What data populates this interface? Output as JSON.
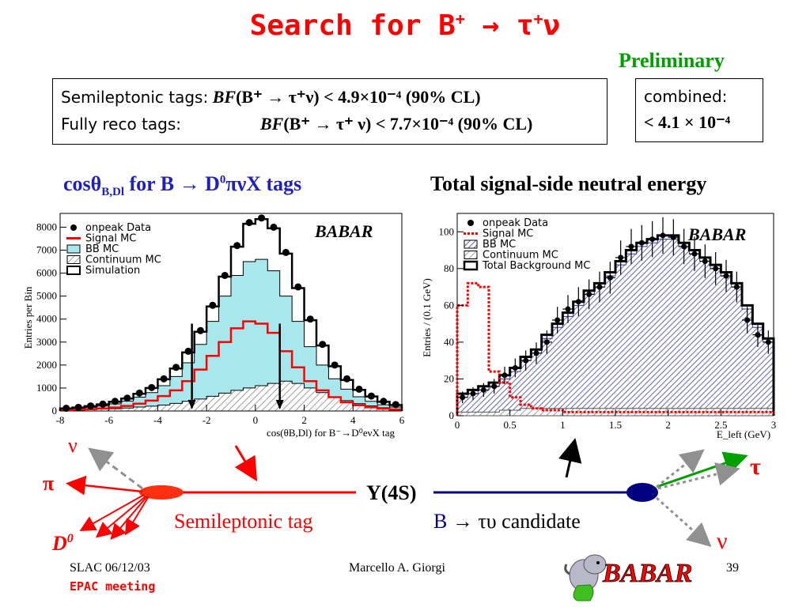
{
  "slide": {
    "title_main": "Search for B",
    "title_sup": "+",
    "title_rest": " → τ",
    "title_sup2": "+",
    "title_end": "ν",
    "preliminary": "Preliminary"
  },
  "results": {
    "semi_label": "Semileptonic tags:",
    "semi_bf": "BF",
    "semi_expr": "(B⁺ → τ⁺ν) < 4.9×10⁻⁴ (90% CL)",
    "full_label": "Fully reco tags:",
    "full_bf": "BF",
    "full_expr": "(B⁺ → τ⁺ ν) < 7.7×10⁻⁴ (90% CL)",
    "combined_label": "combined:",
    "combined_value": "< 4.1 × 10⁻⁴"
  },
  "left_plot": {
    "heading_a": "cosθ",
    "heading_sub": "B,Dl",
    "heading_b": "  for B → D",
    "heading_sup": "0",
    "heading_c": "πνX tags",
    "ylabel": "Entries per Bin",
    "xlabel": "cos(θB,Dl) for B⁻→D⁰eνX tag",
    "logo": "BABAR",
    "legend": [
      "onpeak Data",
      "Signal MC",
      "BB MC",
      "Continuum MC",
      "Simulation"
    ],
    "x_ticks": [
      "-8",
      "-6",
      "-4",
      "-2",
      "0",
      "2",
      "4",
      "6"
    ],
    "y_ticks": [
      "0",
      "1000",
      "2000",
      "3000",
      "4000",
      "5000",
      "6000",
      "7000",
      "8000"
    ]
  },
  "right_plot": {
    "heading": "Total signal-side neutral energy",
    "ylabel": "Entries / (0.1 GeV)",
    "xlabel": "E_left (GeV)",
    "logo": "BABAR",
    "legend": [
      "onpeak Data",
      "Signal MC",
      "BB MC",
      "Continuum MC",
      "Total Background MC"
    ],
    "x_ticks": [
      "0",
      "0.5",
      "1",
      "1.5",
      "2",
      "2.5",
      "3"
    ],
    "y_ticks": [
      "0",
      "20",
      "40",
      "60",
      "80",
      "100"
    ]
  },
  "diagram": {
    "nu_left": "ν",
    "pi": "π",
    "d0": "D",
    "d0_sup": "0",
    "semi_tag": "Semileptonic tag",
    "y4s": "Y(4S)",
    "cand_b": "B",
    "cand_rest": " → τυ  candidate",
    "tau": "τ",
    "nu_right": "ν"
  },
  "footer": {
    "date": "SLAC 06/12/03",
    "meeting": "EPAC meeting",
    "author": "Marcello A. Giorgi",
    "logo": "BABAR",
    "page": "39"
  },
  "colors": {
    "title": "#ff0000",
    "preliminary": "#00a000",
    "heading_blue": "#2020c0",
    "signal": "#ff0000",
    "bb_mc_left": "#a8e8ec",
    "bb_mc_right": "#7c7cc0",
    "tau_line": "#00a000",
    "b_line": "#000080"
  },
  "chart_data": [
    {
      "type": "bar",
      "title": "cosθB,Dl for B → D0πνX tags",
      "xlabel": "cos(θB,Dl) for B⁻→D⁰eνX tag",
      "ylabel": "Entries per Bin",
      "xlim": [
        -8,
        6
      ],
      "ylim": [
        0,
        8600
      ],
      "x": [
        -7.75,
        -7.25,
        -6.75,
        -6.25,
        -5.75,
        -5.25,
        -4.75,
        -4.25,
        -3.75,
        -3.25,
        -2.75,
        -2.25,
        -1.75,
        -1.25,
        -0.75,
        -0.25,
        0.25,
        0.75,
        1.25,
        1.75,
        2.25,
        2.75,
        3.25,
        3.75,
        4.25,
        4.75,
        5.25,
        5.75
      ],
      "series": [
        {
          "name": "onpeak Data",
          "values": [
            120,
            160,
            220,
            300,
            420,
            560,
            780,
            1020,
            1400,
            1900,
            2600,
            3500,
            4600,
            5900,
            7200,
            8200,
            8400,
            8000,
            6900,
            5400,
            4000,
            2900,
            2000,
            1400,
            950,
            650,
            420,
            280
          ]
        },
        {
          "name": "Simulation",
          "values": [
            110,
            150,
            210,
            290,
            400,
            540,
            750,
            1000,
            1380,
            1850,
            2550,
            3450,
            4550,
            5850,
            7150,
            8150,
            8350,
            7950,
            6850,
            5350,
            3950,
            2850,
            1950,
            1350,
            920,
            630,
            400,
            260
          ]
        },
        {
          "name": "BB MC",
          "values": [
            80,
            110,
            160,
            220,
            310,
            430,
            600,
            800,
            1100,
            1500,
            2100,
            2900,
            3900,
            5000,
            5900,
            6500,
            6600,
            6100,
            5000,
            3900,
            2800,
            2000,
            1400,
            950,
            620,
            420,
            270,
            170
          ]
        },
        {
          "name": "Signal MC",
          "values": [
            40,
            60,
            80,
            110,
            150,
            220,
            320,
            450,
            650,
            900,
            1300,
            1800,
            2400,
            3000,
            3600,
            3900,
            3800,
            3400,
            2600,
            1900,
            1300,
            900,
            600,
            380,
            250,
            160,
            100,
            60
          ]
        },
        {
          "name": "Continuum MC",
          "values": [
            40,
            50,
            60,
            80,
            100,
            130,
            170,
            210,
            260,
            330,
            420,
            520,
            640,
            780,
            900,
            1000,
            1100,
            1200,
            1300,
            1200,
            1000,
            800,
            600,
            450,
            320,
            220,
            140,
            90
          ]
        }
      ]
    },
    {
      "type": "bar",
      "title": "Total signal-side neutral energy",
      "xlabel": "E_left (GeV)",
      "ylabel": "Entries / (0.1 GeV)",
      "xlim": [
        0,
        3
      ],
      "ylim": [
        0,
        110
      ],
      "x": [
        0.05,
        0.15,
        0.25,
        0.35,
        0.45,
        0.55,
        0.65,
        0.75,
        0.85,
        0.95,
        1.05,
        1.15,
        1.25,
        1.35,
        1.45,
        1.55,
        1.65,
        1.75,
        1.85,
        1.95,
        2.05,
        2.15,
        2.25,
        2.35,
        2.45,
        2.55,
        2.65,
        2.75,
        2.85,
        2.95
      ],
      "series": [
        {
          "name": "onpeak Data",
          "values": [
            10,
            12,
            14,
            16,
            22,
            26,
            30,
            34,
            40,
            52,
            58,
            62,
            66,
            70,
            75,
            86,
            92,
            94,
            96,
            98,
            97,
            92,
            88,
            84,
            80,
            76,
            70,
            52,
            44,
            40
          ]
        },
        {
          "name": "Total Background MC",
          "values": [
            12,
            14,
            16,
            18,
            22,
            26,
            32,
            36,
            44,
            50,
            56,
            62,
            68,
            72,
            78,
            84,
            90,
            94,
            96,
            98,
            98,
            94,
            90,
            86,
            82,
            78,
            72,
            60,
            50,
            42
          ]
        },
        {
          "name": "BB MC",
          "values": [
            10,
            12,
            14,
            16,
            20,
            24,
            30,
            34,
            42,
            48,
            54,
            60,
            66,
            70,
            76,
            82,
            88,
            92,
            94,
            96,
            96,
            92,
            88,
            84,
            80,
            76,
            70,
            58,
            48,
            40
          ]
        },
        {
          "name": "Signal MC",
          "values": [
            60,
            72,
            70,
            24,
            18,
            10,
            6,
            4,
            3,
            3,
            2,
            2,
            2,
            2,
            2,
            2,
            2,
            2,
            2,
            2,
            2,
            2,
            2,
            2,
            2,
            2,
            2,
            2,
            2,
            2
          ]
        },
        {
          "name": "Continuum MC",
          "values": [
            2,
            2,
            2,
            2,
            3,
            3,
            4,
            4,
            4,
            4,
            4,
            4,
            4,
            4,
            4,
            4,
            4,
            4,
            4,
            4,
            4,
            4,
            4,
            4,
            4,
            4,
            4,
            4,
            4,
            4
          ]
        }
      ]
    }
  ]
}
